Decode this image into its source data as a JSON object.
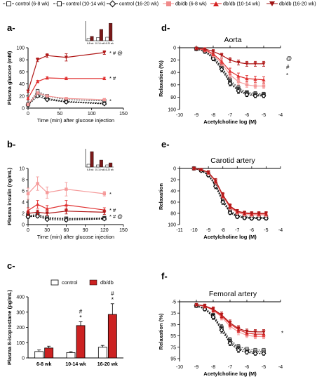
{
  "legend": [
    {
      "label": "control (6-8 wk)",
      "color": "#333333",
      "dash": true,
      "marker": "square-open"
    },
    {
      "label": "control (10-14 wk)",
      "color": "#222222",
      "dash": true,
      "marker": "square-open"
    },
    {
      "label": "control (16-20 wk)",
      "color": "#000000",
      "dash": true,
      "marker": "diamond-open"
    },
    {
      "label": "db/db (6-8 wk)",
      "color": "#f08a8a",
      "dash": false,
      "marker": "square"
    },
    {
      "label": "db/db (10-14 wk)",
      "color": "#d42020",
      "dash": false,
      "marker": "triangle"
    },
    {
      "label": "db/db (16-20 wk)",
      "color": "#a01515",
      "dash": false,
      "marker": "triangle-down"
    }
  ],
  "colors": {
    "ctrl": [
      "#555555",
      "#222222",
      "#000000"
    ],
    "db": [
      "#f59a9a",
      "#e03030",
      "#b01818"
    ]
  },
  "chart_data": [
    {
      "id": "a",
      "panel_label": "a-",
      "type": "line",
      "xlabel": "Time (min) after glucose injection",
      "ylabel": "Plasma glucose (mM)",
      "xlim": [
        0,
        150
      ],
      "ylim": [
        0,
        100
      ],
      "xticks": [
        "0",
        "50",
        "100",
        "150"
      ],
      "yticks": [
        "0",
        "20",
        "40",
        "60",
        "80",
        "100"
      ],
      "x": [
        0,
        15,
        30,
        60,
        120
      ],
      "series": [
        {
          "name": "control (6-8 wk)",
          "values": [
            6,
            28,
            20,
            14,
            12
          ],
          "err": [
            1,
            3,
            2,
            2,
            1.5
          ]
        },
        {
          "name": "control (10-14 wk)",
          "values": [
            6,
            24,
            16,
            11,
            8
          ],
          "err": [
            1,
            2,
            2,
            1.5,
            1
          ]
        },
        {
          "name": "control (16-20 wk)",
          "values": [
            5,
            20,
            14,
            10,
            7
          ],
          "err": [
            1,
            2,
            2,
            1.5,
            1
          ]
        },
        {
          "name": "db/db (6-8 wk)",
          "values": [
            6,
            25,
            20,
            16,
            14
          ],
          "err": [
            1,
            2,
            2,
            2,
            1.5
          ]
        },
        {
          "name": "db/db (10-14 wk)",
          "values": [
            16,
            44,
            50,
            49,
            49
          ],
          "err": [
            2,
            2,
            2,
            2,
            2
          ]
        },
        {
          "name": "db/db (16-20 wk)",
          "values": [
            28,
            80,
            87,
            84,
            92
          ],
          "err": [
            2,
            3,
            3,
            6,
            3
          ]
        }
      ],
      "annotations": [
        "* # @",
        "* #",
        "*"
      ],
      "inset": {
        "categories": [
          "6-8 wk",
          "10-14 wk",
          "16-20 wk"
        ],
        "control": [
          0.5,
          0.7,
          0.8
        ],
        "dbdb": [
          1.0,
          2.6,
          4.0
        ]
      }
    },
    {
      "id": "b",
      "panel_label": "b-",
      "type": "line",
      "xlabel": "Time (min) after glucose injection",
      "ylabel": "Plasma insulin (ng/mL)",
      "xlim": [
        0,
        150
      ],
      "ylim": [
        0,
        10
      ],
      "xticks": [
        "0",
        "30",
        "60",
        "90",
        "120",
        "150"
      ],
      "yticks": [
        "0",
        "2",
        "4",
        "6",
        "8",
        "10"
      ],
      "x": [
        0,
        15,
        30,
        60,
        120
      ],
      "series": [
        {
          "name": "control (6-8 wk)",
          "values": [
            1.6,
            1.8,
            1.3,
            1.1,
            1.2
          ],
          "err": [
            0.3,
            0.3,
            0.2,
            0.2,
            0.2
          ]
        },
        {
          "name": "control (10-14 wk)",
          "values": [
            1.5,
            1.7,
            1.1,
            1.0,
            1.1
          ],
          "err": [
            0.3,
            0.3,
            0.2,
            0.2,
            0.2
          ]
        },
        {
          "name": "control (16-20 wk)",
          "values": [
            1.4,
            1.5,
            0.9,
            0.8,
            1.0
          ],
          "err": [
            0.3,
            0.3,
            0.2,
            0.2,
            0.2
          ]
        },
        {
          "name": "db/db (6-8 wk)",
          "values": [
            5.5,
            7.3,
            5.7,
            6.3,
            5.5
          ],
          "err": [
            1.0,
            1.2,
            1.0,
            1.2,
            0.4
          ]
        },
        {
          "name": "db/db (10-14 wk)",
          "values": [
            2.5,
            3.6,
            2.8,
            3.5,
            2.6
          ],
          "err": [
            0.5,
            0.7,
            0.6,
            0.8,
            0.4
          ]
        },
        {
          "name": "db/db (16-20 wk)",
          "values": [
            2.0,
            2.2,
            2.0,
            2.4,
            2.2
          ],
          "err": [
            0.4,
            0.4,
            0.4,
            0.5,
            0.4
          ]
        }
      ],
      "annotations": [
        "*",
        "* #",
        "* # @"
      ],
      "inset": {
        "categories": [
          "6-8 wk",
          "10-14 wk",
          "16-20 wk"
        ],
        "control": [
          0.4,
          0.3,
          0.3
        ],
        "dbdb": [
          2.2,
          1.0,
          0.6
        ]
      }
    },
    {
      "id": "c",
      "panel_label": "c-",
      "type": "bar",
      "xlabel": "",
      "ylabel": "Plasma 8-isoprostane (pg/mL)",
      "ylim": [
        0,
        400
      ],
      "yticks": [
        "0",
        "100",
        "200",
        "300",
        "400"
      ],
      "categories": [
        "6-8 wk",
        "10-14 wk",
        "16-20 wk"
      ],
      "series": [
        {
          "name": "control",
          "values": [
            42,
            35,
            70
          ],
          "err": [
            10,
            6,
            12
          ]
        },
        {
          "name": "db/db",
          "values": [
            65,
            212,
            285
          ],
          "err": [
            12,
            25,
            70
          ]
        }
      ],
      "annotations": [
        [
          "",
          ""
        ],
        [
          "#",
          "*"
        ],
        [
          "#",
          "*"
        ]
      ]
    },
    {
      "id": "d",
      "panel_label": "d-",
      "type": "line",
      "title": "Aorta",
      "xlabel": "Acetylcholine log (M)",
      "ylabel": "Relaxation (%)",
      "xlim": [
        -10,
        -4
      ],
      "ylim": [
        0,
        100
      ],
      "y_inverted": true,
      "xticks": [
        "-10",
        "-9",
        "-8",
        "-7",
        "-6",
        "-5",
        "-4"
      ],
      "yticks": [
        "0",
        "20",
        "40",
        "60",
        "80",
        "100"
      ],
      "x": [
        -9,
        -8.5,
        -8,
        -7.5,
        -7,
        -6.5,
        -6,
        -5.5,
        -5
      ],
      "series": [
        {
          "name": "control (6-8 wk)",
          "values": [
            2,
            5,
            14,
            30,
            52,
            65,
            72,
            74,
            75
          ],
          "err": [
            2,
            3,
            3,
            4,
            4,
            4,
            3,
            3,
            3
          ]
        },
        {
          "name": "control (10-14 wk)",
          "values": [
            2,
            5,
            16,
            32,
            55,
            68,
            74,
            76,
            76
          ],
          "err": [
            2,
            3,
            3,
            4,
            4,
            4,
            3,
            3,
            3
          ]
        },
        {
          "name": "control (16-20 wk)",
          "values": [
            2,
            6,
            18,
            35,
            58,
            70,
            76,
            78,
            78
          ],
          "err": [
            2,
            3,
            3,
            4,
            4,
            4,
            3,
            3,
            3
          ]
        },
        {
          "name": "db/db (6-8 wk)",
          "values": [
            1,
            4,
            12,
            25,
            44,
            55,
            60,
            62,
            62
          ],
          "err": [
            2,
            3,
            3,
            4,
            5,
            5,
            4,
            4,
            4
          ]
        },
        {
          "name": "db/db (10-14 wk)",
          "values": [
            1,
            3,
            10,
            22,
            38,
            46,
            50,
            51,
            52
          ],
          "err": [
            2,
            3,
            3,
            4,
            5,
            5,
            5,
            5,
            5
          ]
        },
        {
          "name": "db/db (16-20 wk)",
          "values": [
            1,
            2,
            6,
            12,
            20,
            24,
            26,
            26,
            26
          ],
          "err": [
            2,
            2,
            3,
            3,
            4,
            4,
            4,
            4,
            4
          ]
        }
      ],
      "annotations": [
        "@",
        "#",
        "*"
      ]
    },
    {
      "id": "e",
      "panel_label": "e-",
      "type": "line",
      "title": "Carotid artery",
      "xlabel": "Acetylcholine log (M)",
      "ylabel": "Relaxation",
      "xlim": [
        -11,
        -4
      ],
      "ylim": [
        0,
        100
      ],
      "y_inverted": true,
      "xticks": [
        "-11",
        "-10",
        "-9",
        "-8",
        "-7",
        "-6",
        "-5",
        "-4"
      ],
      "yticks": [
        "0",
        "20",
        "40",
        "60",
        "80",
        "100"
      ],
      "x": [
        -10,
        -9.5,
        -9,
        -8.5,
        -8,
        -7.5,
        -7,
        -6.5,
        -6,
        -5.5,
        -5
      ],
      "series": [
        {
          "name": "control (6-8 wk)",
          "values": [
            0,
            3,
            10,
            28,
            55,
            75,
            83,
            86,
            87,
            87,
            87
          ],
          "err": [
            2,
            2,
            3,
            4,
            4,
            3,
            3,
            3,
            3,
            3,
            3
          ]
        },
        {
          "name": "control (10-14 wk)",
          "values": [
            0,
            3,
            11,
            30,
            57,
            77,
            85,
            87,
            88,
            88,
            88
          ],
          "err": [
            2,
            2,
            3,
            4,
            4,
            3,
            3,
            3,
            3,
            3,
            3
          ]
        },
        {
          "name": "control (16-20 wk)",
          "values": [
            0,
            4,
            12,
            32,
            60,
            79,
            86,
            88,
            89,
            89,
            89
          ],
          "err": [
            2,
            2,
            3,
            4,
            4,
            3,
            3,
            3,
            3,
            3,
            3
          ]
        },
        {
          "name": "db/db (6-8 wk)",
          "values": [
            0,
            2,
            8,
            24,
            50,
            70,
            79,
            82,
            83,
            83,
            83
          ],
          "err": [
            2,
            2,
            3,
            4,
            4,
            4,
            3,
            3,
            3,
            3,
            3
          ]
        },
        {
          "name": "db/db (10-14 wk)",
          "values": [
            0,
            2,
            7,
            22,
            48,
            68,
            77,
            80,
            81,
            81,
            81
          ],
          "err": [
            2,
            2,
            3,
            4,
            4,
            4,
            3,
            3,
            3,
            3,
            3
          ]
        },
        {
          "name": "db/db (16-20 wk)",
          "values": [
            0,
            2,
            7,
            22,
            47,
            67,
            76,
            79,
            80,
            80,
            80
          ],
          "err": [
            2,
            2,
            3,
            4,
            4,
            4,
            3,
            3,
            3,
            3,
            3
          ]
        }
      ]
    },
    {
      "id": "f",
      "panel_label": "f-",
      "type": "line",
      "title": "Femoral artery",
      "xlabel": "Acetylcholine log (M)",
      "ylabel": "Relaxation (%)",
      "xlim": [
        -10,
        -4
      ],
      "ylim": [
        -5,
        100
      ],
      "y_inverted": true,
      "xticks": [
        "-10",
        "-9",
        "-8",
        "-7",
        "-6",
        "-5",
        "-4"
      ],
      "yticks": [
        "-5",
        "15",
        "35",
        "55",
        "75",
        "95"
      ],
      "x": [
        -9,
        -8.5,
        -8,
        -7.5,
        -7,
        -6.5,
        -6,
        -5.5,
        -5
      ],
      "series": [
        {
          "name": "control (6-8 wk)",
          "values": [
            2,
            6,
            18,
            40,
            62,
            74,
            78,
            80,
            80
          ],
          "err": [
            2,
            3,
            4,
            5,
            4,
            4,
            3,
            3,
            3
          ]
        },
        {
          "name": "control (10-14 wk)",
          "values": [
            2,
            7,
            20,
            42,
            65,
            77,
            81,
            83,
            83
          ],
          "err": [
            2,
            3,
            4,
            5,
            4,
            4,
            3,
            3,
            3
          ]
        },
        {
          "name": "control (16-20 wk)",
          "values": [
            2,
            8,
            22,
            45,
            68,
            80,
            84,
            86,
            86
          ],
          "err": [
            2,
            3,
            4,
            5,
            4,
            4,
            3,
            3,
            3
          ]
        },
        {
          "name": "db/db (6-8 wk)",
          "values": [
            0,
            3,
            10,
            22,
            38,
            48,
            54,
            56,
            56
          ],
          "err": [
            2,
            3,
            4,
            5,
            5,
            5,
            4,
            4,
            4
          ]
        },
        {
          "name": "db/db (10-14 wk)",
          "values": [
            0,
            3,
            9,
            20,
            34,
            44,
            50,
            52,
            52
          ],
          "err": [
            2,
            3,
            4,
            5,
            5,
            5,
            4,
            4,
            4
          ]
        },
        {
          "name": "db/db (16-20 wk)",
          "values": [
            0,
            2,
            8,
            18,
            32,
            42,
            47,
            48,
            48
          ],
          "err": [
            2,
            3,
            4,
            5,
            5,
            5,
            4,
            4,
            4
          ]
        }
      ],
      "annotations": [
        "*"
      ]
    }
  ]
}
